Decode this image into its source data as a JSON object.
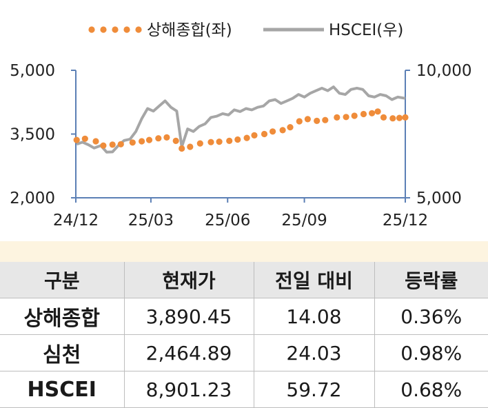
{
  "chart_data": {
    "type": "line",
    "legend_position": "top",
    "grid": false,
    "x_ticks": [
      "24/12",
      "25/03",
      "25/06",
      "25/09",
      "25/12"
    ],
    "left_axis": {
      "min": 2000,
      "max": 5000,
      "ticks": [
        "2,000",
        "3,500",
        "5,000"
      ]
    },
    "right_axis": {
      "min": 5000,
      "max": 10000,
      "ticks": [
        "5,000",
        "10,000"
      ]
    },
    "series": [
      {
        "name": "상해종합(좌)",
        "axis": "left",
        "style": "dotted",
        "color": "#ef8c3a",
        "points": [
          [
            "2024-12-02",
            3360
          ],
          [
            "2024-12-12",
            3390
          ],
          [
            "2024-12-25",
            3330
          ],
          [
            "2025-01-03",
            3230
          ],
          [
            "2025-01-14",
            3250
          ],
          [
            "2025-01-24",
            3260
          ],
          [
            "2025-02-07",
            3300
          ],
          [
            "2025-02-18",
            3330
          ],
          [
            "2025-02-27",
            3360
          ],
          [
            "2025-03-10",
            3400
          ],
          [
            "2025-03-20",
            3420
          ],
          [
            "2025-03-31",
            3340
          ],
          [
            "2025-04-07",
            3160
          ],
          [
            "2025-04-17",
            3200
          ],
          [
            "2025-04-29",
            3280
          ],
          [
            "2025-05-12",
            3310
          ],
          [
            "2025-05-22",
            3320
          ],
          [
            "2025-06-03",
            3340
          ],
          [
            "2025-06-13",
            3370
          ],
          [
            "2025-06-24",
            3410
          ],
          [
            "2025-07-03",
            3470
          ],
          [
            "2025-07-15",
            3500
          ],
          [
            "2025-07-25",
            3560
          ],
          [
            "2025-08-06",
            3590
          ],
          [
            "2025-08-15",
            3660
          ],
          [
            "2025-08-26",
            3800
          ],
          [
            "2025-09-05",
            3850
          ],
          [
            "2025-09-16",
            3810
          ],
          [
            "2025-09-26",
            3830
          ],
          [
            "2025-10-10",
            3890
          ],
          [
            "2025-10-21",
            3900
          ],
          [
            "2025-10-31",
            3930
          ],
          [
            "2025-11-11",
            3970
          ],
          [
            "2025-11-21",
            3990
          ],
          [
            "2025-11-28",
            4030
          ],
          [
            "2025-12-05",
            3890
          ],
          [
            "2025-12-16",
            3870
          ],
          [
            "2025-12-24",
            3880
          ],
          [
            "2025-12-31",
            3890
          ]
        ]
      },
      {
        "name": "HSCEI(우)",
        "axis": "right",
        "style": "solid",
        "color": "#a6a6a6",
        "points": [
          [
            "2024-12-02",
            7100
          ],
          [
            "2024-12-09",
            7180
          ],
          [
            "2024-12-16",
            7080
          ],
          [
            "2024-12-23",
            6950
          ],
          [
            "2024-12-31",
            7050
          ],
          [
            "2025-01-07",
            6790
          ],
          [
            "2025-01-14",
            6800
          ],
          [
            "2025-01-21",
            7050
          ],
          [
            "2025-01-28",
            7250
          ],
          [
            "2025-02-04",
            7300
          ],
          [
            "2025-02-11",
            7600
          ],
          [
            "2025-02-18",
            8100
          ],
          [
            "2025-02-25",
            8500
          ],
          [
            "2025-03-04",
            8400
          ],
          [
            "2025-03-11",
            8600
          ],
          [
            "2025-03-18",
            8800
          ],
          [
            "2025-03-25",
            8550
          ],
          [
            "2025-04-01",
            8400
          ],
          [
            "2025-04-07",
            7000
          ],
          [
            "2025-04-14",
            7700
          ],
          [
            "2025-04-21",
            7600
          ],
          [
            "2025-04-28",
            7800
          ],
          [
            "2025-05-05",
            7900
          ],
          [
            "2025-05-12",
            8150
          ],
          [
            "2025-05-19",
            8200
          ],
          [
            "2025-05-26",
            8300
          ],
          [
            "2025-06-02",
            8250
          ],
          [
            "2025-06-09",
            8450
          ],
          [
            "2025-06-16",
            8380
          ],
          [
            "2025-06-23",
            8500
          ],
          [
            "2025-06-30",
            8450
          ],
          [
            "2025-07-07",
            8550
          ],
          [
            "2025-07-14",
            8600
          ],
          [
            "2025-07-21",
            8800
          ],
          [
            "2025-07-28",
            8850
          ],
          [
            "2025-08-04",
            8700
          ],
          [
            "2025-08-11",
            8800
          ],
          [
            "2025-08-18",
            8900
          ],
          [
            "2025-08-25",
            9050
          ],
          [
            "2025-09-01",
            8950
          ],
          [
            "2025-09-08",
            9100
          ],
          [
            "2025-09-15",
            9200
          ],
          [
            "2025-09-22",
            9300
          ],
          [
            "2025-09-29",
            9200
          ],
          [
            "2025-10-06",
            9350
          ],
          [
            "2025-10-13",
            9100
          ],
          [
            "2025-10-20",
            9050
          ],
          [
            "2025-10-27",
            9250
          ],
          [
            "2025-11-03",
            9300
          ],
          [
            "2025-11-10",
            9250
          ],
          [
            "2025-11-17",
            9000
          ],
          [
            "2025-11-24",
            8950
          ],
          [
            "2025-12-01",
            9050
          ],
          [
            "2025-12-08",
            9000
          ],
          [
            "2025-12-15",
            8850
          ],
          [
            "2025-12-22",
            8950
          ],
          [
            "2025-12-31",
            8901
          ]
        ]
      }
    ]
  },
  "table": {
    "headers": [
      "구분",
      "현재가",
      "전일 대비",
      "등락률"
    ],
    "rows": [
      {
        "name": "상해종합",
        "price": "3,890.45",
        "change": "14.08",
        "rate": "0.36%"
      },
      {
        "name": "심천",
        "price": "2,464.89",
        "change": "24.03",
        "rate": "0.98%"
      },
      {
        "name": "HSCEI",
        "price": "8,901.23",
        "change": "59.72",
        "rate": "0.68%"
      }
    ]
  }
}
